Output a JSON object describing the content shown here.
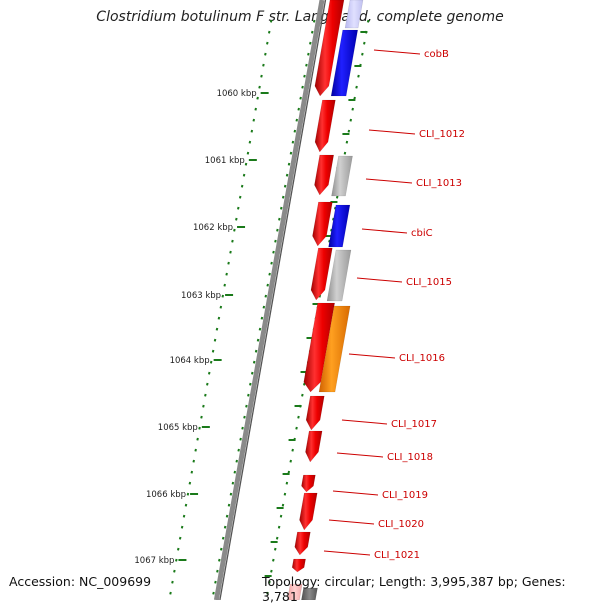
{
  "title": "Clostridium botulinum F str. Langeland, complete genome",
  "footer": {
    "accession": "Accession: NC_009699",
    "topology": "Topology: circular; Length: 3,995,387 bp; Genes: 3,781"
  },
  "ticks": [
    {
      "label": "1060 kbp"
    },
    {
      "label": "1061 kbp"
    },
    {
      "label": "1062 kbp"
    },
    {
      "label": "1063 kbp"
    },
    {
      "label": "1064 kbp"
    },
    {
      "label": "1065 kbp"
    },
    {
      "label": "1066 kbp"
    },
    {
      "label": "1067 kbp"
    }
  ],
  "gene_labels": [
    {
      "label": "cobB",
      "color": "#cc0000"
    },
    {
      "label": "CLI_1012",
      "color": "#cc0000"
    },
    {
      "label": "CLI_1013",
      "color": "#cc0000"
    },
    {
      "label": "cbiC",
      "color": "#cc0000"
    },
    {
      "label": "CLI_1015",
      "color": "#cc0000"
    },
    {
      "label": "CLI_1016",
      "color": "#cc0000"
    },
    {
      "label": "CLI_1017",
      "color": "#cc0000"
    },
    {
      "label": "CLI_1018",
      "color": "#cc0000"
    },
    {
      "label": "CLI_1019",
      "color": "#cc0000"
    },
    {
      "label": "CLI_1020",
      "color": "#cc0000"
    },
    {
      "label": "CLI_1021",
      "color": "#cc0000"
    }
  ],
  "colors": {
    "cds": "#ee0000",
    "blue": "#0000ee",
    "gray": "#b0b0b0",
    "orange": "#ff8800",
    "backbone": "#6e6e6e",
    "tick": "#1a7a1a",
    "label_line": "#cc0000"
  }
}
